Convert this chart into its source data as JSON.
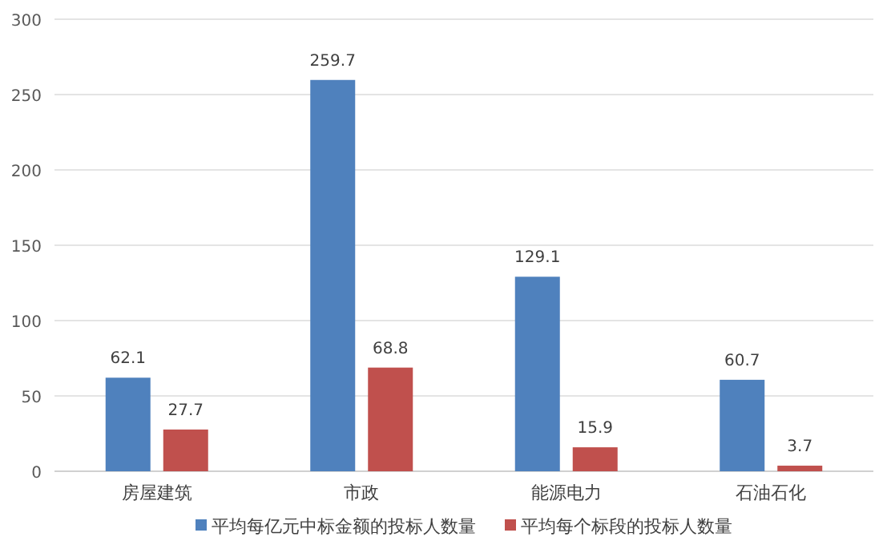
{
  "chart_data": {
    "type": "bar",
    "categories": [
      "房屋建筑",
      "市政",
      "能源电力",
      "石油石化"
    ],
    "series": [
      {
        "name": "平均每亿元中标金额的投标人数量",
        "color": "#4f81bd",
        "values": [
          62.1,
          259.7,
          129.1,
          60.7
        ]
      },
      {
        "name": "平均每个标段的投标人数量",
        "color": "#c0504d",
        "values": [
          27.7,
          68.8,
          15.9,
          3.7
        ]
      }
    ],
    "ylim": [
      0,
      300
    ],
    "yticks": [
      0,
      50,
      100,
      150,
      200,
      250,
      300
    ],
    "grid": "y",
    "legend": "bottom",
    "data_labels": true
  }
}
